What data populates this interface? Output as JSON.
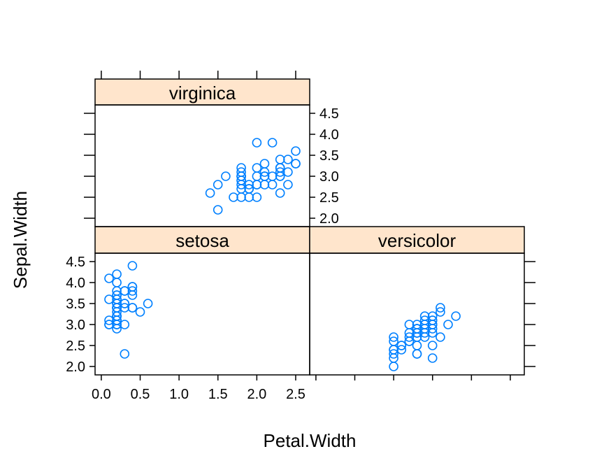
{
  "chart_data": {
    "type": "scatter",
    "xlabel": "Petal.Width",
    "ylabel": "Sepal.Width",
    "xlim": [
      -0.08,
      2.68
    ],
    "ylim": [
      1.8,
      4.7
    ],
    "x_ticks": [
      "0.0",
      "0.5",
      "1.0",
      "1.5",
      "2.0",
      "2.5"
    ],
    "y_ticks": [
      "2.0",
      "2.5",
      "3.0",
      "3.5",
      "4.0",
      "4.5"
    ],
    "strip_color": "#FFE5CC",
    "point_color": "#0080FF",
    "panels": [
      {
        "label": "setosa",
        "points": [
          [
            0.2,
            3.5
          ],
          [
            0.2,
            3.0
          ],
          [
            0.2,
            3.2
          ],
          [
            0.2,
            3.1
          ],
          [
            0.2,
            3.6
          ],
          [
            0.4,
            3.9
          ],
          [
            0.3,
            3.4
          ],
          [
            0.2,
            3.4
          ],
          [
            0.2,
            2.9
          ],
          [
            0.1,
            3.1
          ],
          [
            0.2,
            3.7
          ],
          [
            0.2,
            3.4
          ],
          [
            0.1,
            3.0
          ],
          [
            0.1,
            3.0
          ],
          [
            0.2,
            4.0
          ],
          [
            0.4,
            4.4
          ],
          [
            0.4,
            3.9
          ],
          [
            0.3,
            3.5
          ],
          [
            0.3,
            3.8
          ],
          [
            0.3,
            3.8
          ],
          [
            0.2,
            3.4
          ],
          [
            0.4,
            3.7
          ],
          [
            0.2,
            3.6
          ],
          [
            0.5,
            3.3
          ],
          [
            0.2,
            3.4
          ],
          [
            0.2,
            3.0
          ],
          [
            0.4,
            3.4
          ],
          [
            0.2,
            3.5
          ],
          [
            0.2,
            3.4
          ],
          [
            0.2,
            3.2
          ],
          [
            0.2,
            3.1
          ],
          [
            0.4,
            3.4
          ],
          [
            0.1,
            4.1
          ],
          [
            0.2,
            4.2
          ],
          [
            0.2,
            3.1
          ],
          [
            0.2,
            3.2
          ],
          [
            0.2,
            3.5
          ],
          [
            0.1,
            3.6
          ],
          [
            0.2,
            3.0
          ],
          [
            0.2,
            3.4
          ],
          [
            0.3,
            3.5
          ],
          [
            0.3,
            2.3
          ],
          [
            0.2,
            3.2
          ],
          [
            0.6,
            3.5
          ],
          [
            0.4,
            3.8
          ],
          [
            0.3,
            3.0
          ],
          [
            0.2,
            3.8
          ],
          [
            0.2,
            3.2
          ],
          [
            0.2,
            3.7
          ],
          [
            0.2,
            3.3
          ]
        ]
      },
      {
        "label": "versicolor",
        "points": [
          [
            1.4,
            3.2
          ],
          [
            1.5,
            3.2
          ],
          [
            1.5,
            3.1
          ],
          [
            1.3,
            2.3
          ],
          [
            1.5,
            2.8
          ],
          [
            1.3,
            2.8
          ],
          [
            1.6,
            3.3
          ],
          [
            1.0,
            2.4
          ],
          [
            1.3,
            2.9
          ],
          [
            1.4,
            2.7
          ],
          [
            1.0,
            2.0
          ],
          [
            1.5,
            3.0
          ],
          [
            1.0,
            2.2
          ],
          [
            1.4,
            2.9
          ],
          [
            1.3,
            2.9
          ],
          [
            1.4,
            3.1
          ],
          [
            1.5,
            3.0
          ],
          [
            1.0,
            2.7
          ],
          [
            1.5,
            2.2
          ],
          [
            1.1,
            2.5
          ],
          [
            1.8,
            3.2
          ],
          [
            1.3,
            2.8
          ],
          [
            1.5,
            2.5
          ],
          [
            1.2,
            2.8
          ],
          [
            1.3,
            2.9
          ],
          [
            1.4,
            3.0
          ],
          [
            1.4,
            2.8
          ],
          [
            1.7,
            3.0
          ],
          [
            1.5,
            2.9
          ],
          [
            1.0,
            2.6
          ],
          [
            1.1,
            2.4
          ],
          [
            1.0,
            2.4
          ],
          [
            1.2,
            2.7
          ],
          [
            1.6,
            2.7
          ],
          [
            1.5,
            3.0
          ],
          [
            1.6,
            3.4
          ],
          [
            1.5,
            3.1
          ],
          [
            1.3,
            2.3
          ],
          [
            1.3,
            3.0
          ],
          [
            1.3,
            2.5
          ],
          [
            1.2,
            2.6
          ],
          [
            1.4,
            3.0
          ],
          [
            1.2,
            2.6
          ],
          [
            1.0,
            2.3
          ],
          [
            1.3,
            2.7
          ],
          [
            1.2,
            3.0
          ],
          [
            1.3,
            2.9
          ],
          [
            1.3,
            2.9
          ],
          [
            1.1,
            2.5
          ],
          [
            1.3,
            2.8
          ]
        ]
      },
      {
        "label": "virginica",
        "points": [
          [
            2.5,
            3.3
          ],
          [
            1.9,
            2.7
          ],
          [
            2.1,
            3.0
          ],
          [
            1.8,
            2.9
          ],
          [
            2.2,
            3.0
          ],
          [
            2.1,
            3.0
          ],
          [
            1.7,
            2.5
          ],
          [
            1.8,
            2.9
          ],
          [
            1.8,
            2.5
          ],
          [
            2.5,
            3.6
          ],
          [
            2.0,
            3.2
          ],
          [
            1.9,
            2.7
          ],
          [
            2.1,
            3.0
          ],
          [
            2.0,
            2.5
          ],
          [
            2.4,
            2.8
          ],
          [
            2.3,
            3.2
          ],
          [
            1.8,
            3.0
          ],
          [
            2.2,
            3.8
          ],
          [
            2.3,
            2.6
          ],
          [
            1.5,
            2.2
          ],
          [
            2.3,
            3.2
          ],
          [
            2.0,
            2.8
          ],
          [
            2.0,
            2.8
          ],
          [
            1.8,
            2.7
          ],
          [
            2.1,
            3.3
          ],
          [
            1.8,
            3.2
          ],
          [
            1.8,
            2.8
          ],
          [
            1.8,
            3.0
          ],
          [
            2.1,
            2.8
          ],
          [
            1.6,
            3.0
          ],
          [
            1.9,
            2.8
          ],
          [
            2.0,
            3.8
          ],
          [
            2.2,
            2.8
          ],
          [
            1.5,
            2.8
          ],
          [
            1.4,
            2.6
          ],
          [
            2.3,
            3.0
          ],
          [
            2.4,
            3.4
          ],
          [
            1.8,
            3.1
          ],
          [
            1.8,
            3.0
          ],
          [
            2.1,
            3.1
          ],
          [
            2.4,
            3.1
          ],
          [
            2.3,
            3.1
          ],
          [
            1.9,
            2.7
          ],
          [
            2.3,
            3.2
          ],
          [
            2.5,
            3.3
          ],
          [
            2.3,
            3.0
          ],
          [
            1.9,
            2.5
          ],
          [
            2.0,
            3.0
          ],
          [
            2.3,
            3.4
          ],
          [
            1.8,
            3.0
          ]
        ]
      }
    ]
  }
}
